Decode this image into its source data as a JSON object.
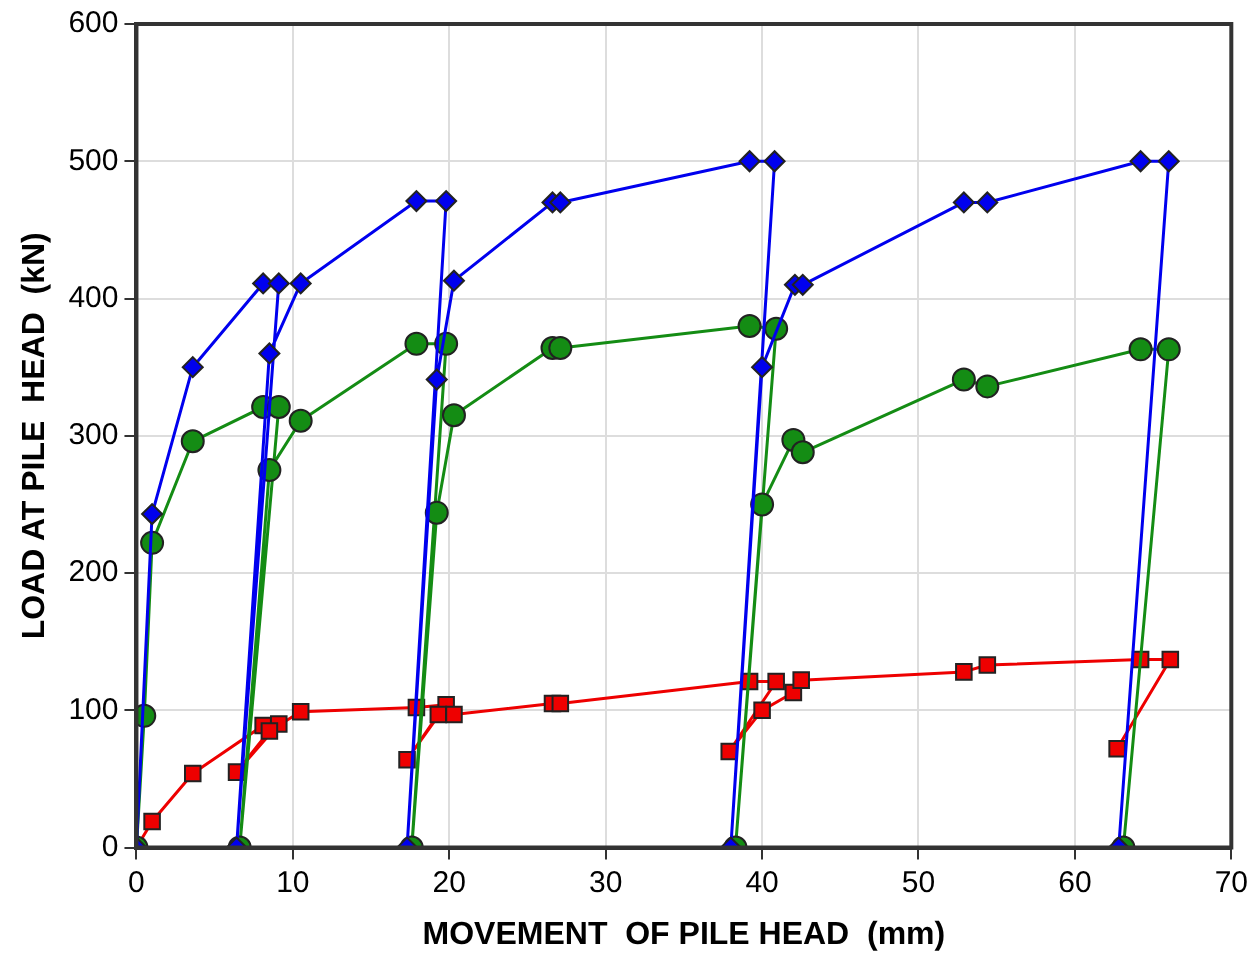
{
  "chart_data": {
    "type": "line",
    "xlabel": "MOVEMENT  OF PILE HEAD  (mm)",
    "ylabel": "LOAD AT PILE  HEAD  (kN)",
    "xlim": [
      0,
      70
    ],
    "ylim": [
      0,
      600
    ],
    "xticks": [
      0,
      10,
      20,
      30,
      40,
      50,
      60,
      70
    ],
    "yticks": [
      0,
      100,
      200,
      300,
      400,
      500,
      600
    ],
    "grid": true,
    "legend": false,
    "line_style": "solid",
    "series": [
      {
        "color": "#0000ee",
        "marker": "diamond",
        "x": [
          0,
          1.0,
          3.6,
          8.1,
          9.1,
          6.4,
          8.5,
          10.5,
          17.9,
          19.8,
          17.3,
          19.2,
          20.3,
          26.6,
          27.1,
          39.2,
          40.8,
          38.0,
          40.0,
          42.1,
          42.6,
          52.9,
          54.4,
          64.2,
          66.0,
          62.8
        ],
        "values": [
          0,
          243,
          350,
          411,
          411,
          0,
          360,
          411,
          471,
          471,
          0,
          341,
          413,
          470,
          470,
          500,
          500,
          0,
          350,
          410,
          410,
          470,
          470,
          500,
          500,
          0
        ]
      },
      {
        "color": "#148c14",
        "marker": "circle",
        "x": [
          0,
          0.5,
          1.0,
          3.6,
          8.1,
          9.1,
          6.6,
          8.5,
          10.5,
          17.9,
          19.8,
          17.6,
          19.2,
          20.3,
          26.6,
          27.1,
          39.2,
          40.9,
          38.3,
          40.0,
          42.0,
          42.6,
          52.9,
          54.4,
          64.2,
          66.0,
          63.1
        ],
        "values": [
          0,
          96,
          222,
          296,
          321,
          321,
          0,
          275,
          311,
          367,
          367,
          0,
          244,
          315,
          364,
          364,
          380,
          378,
          0,
          250,
          297,
          288,
          341,
          336,
          363,
          363,
          0
        ]
      },
      {
        "color": "#ee0000",
        "marker": "square",
        "x": [
          0,
          1.0,
          3.6,
          8.1,
          9.1,
          6.4,
          8.5,
          10.5,
          17.9,
          19.8,
          17.3,
          19.3,
          20.3,
          26.6,
          27.1,
          39.2,
          40.9,
          37.9,
          40.0,
          42.0,
          42.5,
          52.9,
          54.4,
          64.2,
          66.1,
          62.7
        ],
        "values": [
          0,
          19,
          54,
          89,
          90,
          55,
          85,
          99,
          102,
          104,
          64,
          97,
          97,
          105,
          105,
          121,
          121,
          70,
          100,
          113,
          122,
          128,
          133,
          137,
          137,
          72
        ]
      }
    ]
  }
}
